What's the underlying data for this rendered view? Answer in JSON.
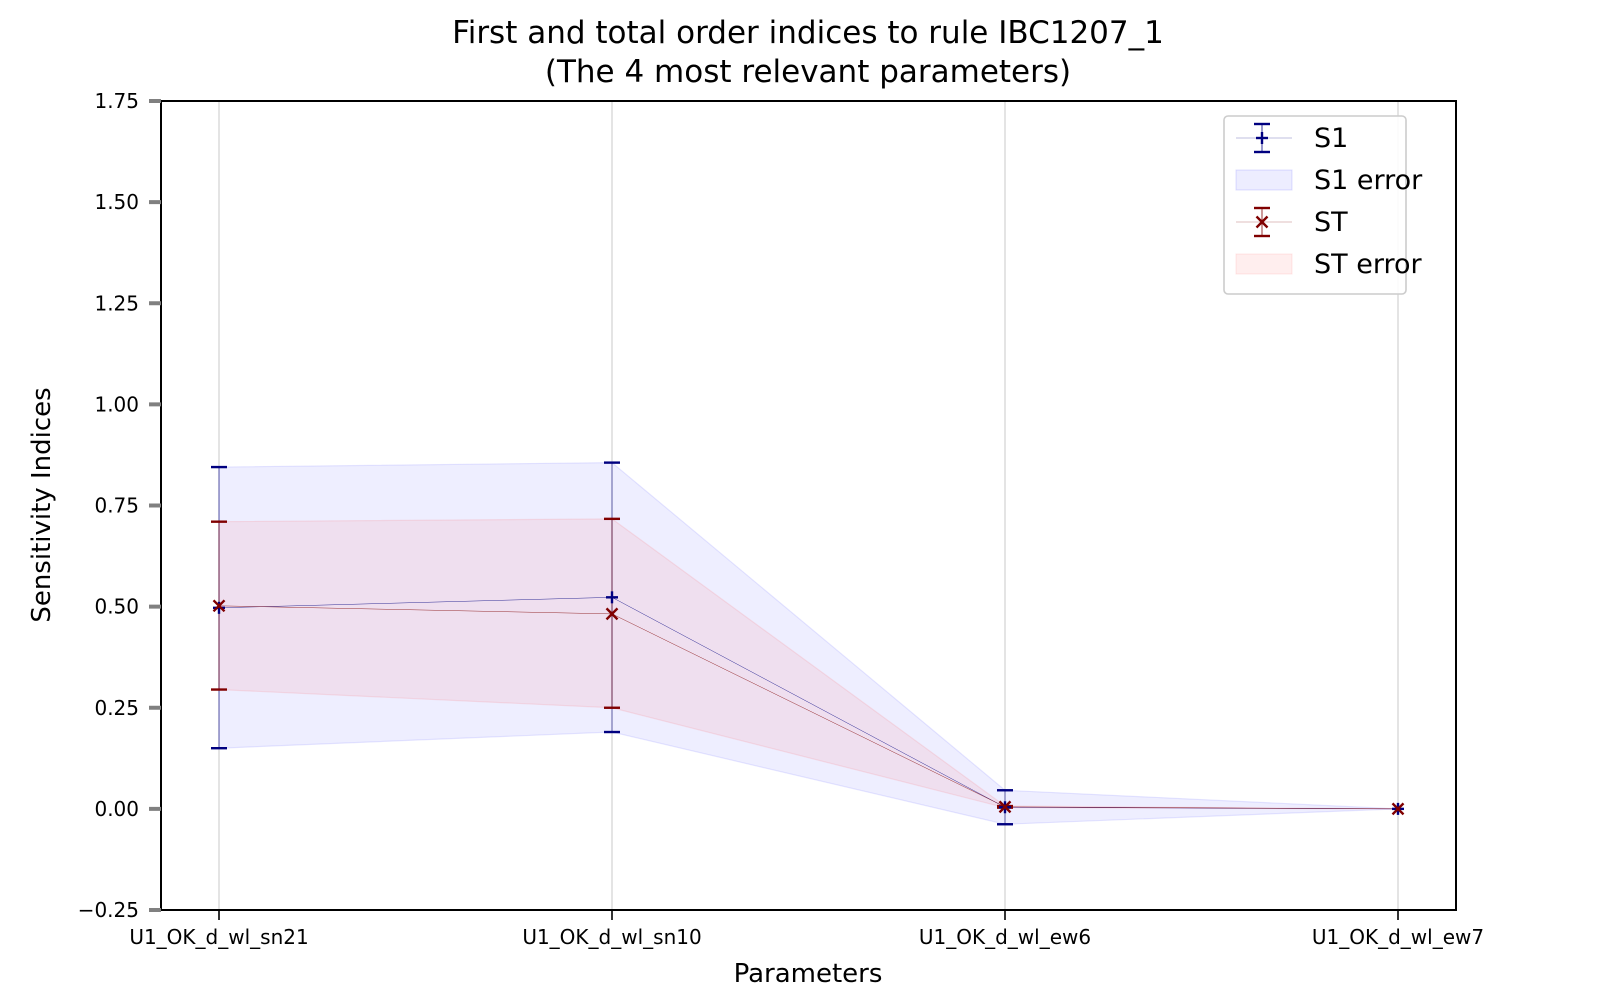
{
  "chart_data": {
    "type": "line",
    "title": "First and total order indices to rule IBC1207_1",
    "subtitle": "(The 4 most relevant parameters)",
    "xlabel": "Parameters",
    "ylabel": "Sensitivity Indices",
    "categories": [
      "U1_OK_d_wl_sn21",
      "U1_OK_d_wl_sn10",
      "U1_OK_d_wl_ew6",
      "U1_OK_d_wl_ew7"
    ],
    "ylim": [
      -0.25,
      1.75
    ],
    "yticks": [
      -0.25,
      0.0,
      0.25,
      0.5,
      0.75,
      1.0,
      1.25,
      1.5,
      1.75
    ],
    "ytick_labels": [
      "−0.25",
      "0.00",
      "0.25",
      "0.50",
      "0.75",
      "1.00",
      "1.25",
      "1.50",
      "1.75"
    ],
    "grid": "vertical",
    "legend_position": "top-right",
    "legend": [
      {
        "label": "S1",
        "kind": "errorbar-marker",
        "marker": "+",
        "color": "#000080"
      },
      {
        "label": "S1 error",
        "kind": "patch",
        "color": "#0000ff",
        "alpha": 0.07
      },
      {
        "label": "ST",
        "kind": "errorbar-marker",
        "marker": "x",
        "color": "#800000"
      },
      {
        "label": "ST error",
        "kind": "patch",
        "color": "#ff4444",
        "alpha": 0.09
      }
    ],
    "series": [
      {
        "name": "S1",
        "marker": "+",
        "color": "#000080",
        "values": [
          0.497,
          0.523,
          0.004,
          0.0
        ],
        "lower": [
          0.15,
          0.19,
          -0.038,
          0.0
        ],
        "upper": [
          0.845,
          0.856,
          0.046,
          0.0
        ]
      },
      {
        "name": "ST",
        "marker": "x",
        "color": "#800000",
        "values": [
          0.502,
          0.482,
          0.005,
          0.0
        ],
        "lower": [
          0.295,
          0.25,
          0.003,
          0.0
        ],
        "upper": [
          0.71,
          0.717,
          0.007,
          0.0
        ]
      }
    ]
  }
}
